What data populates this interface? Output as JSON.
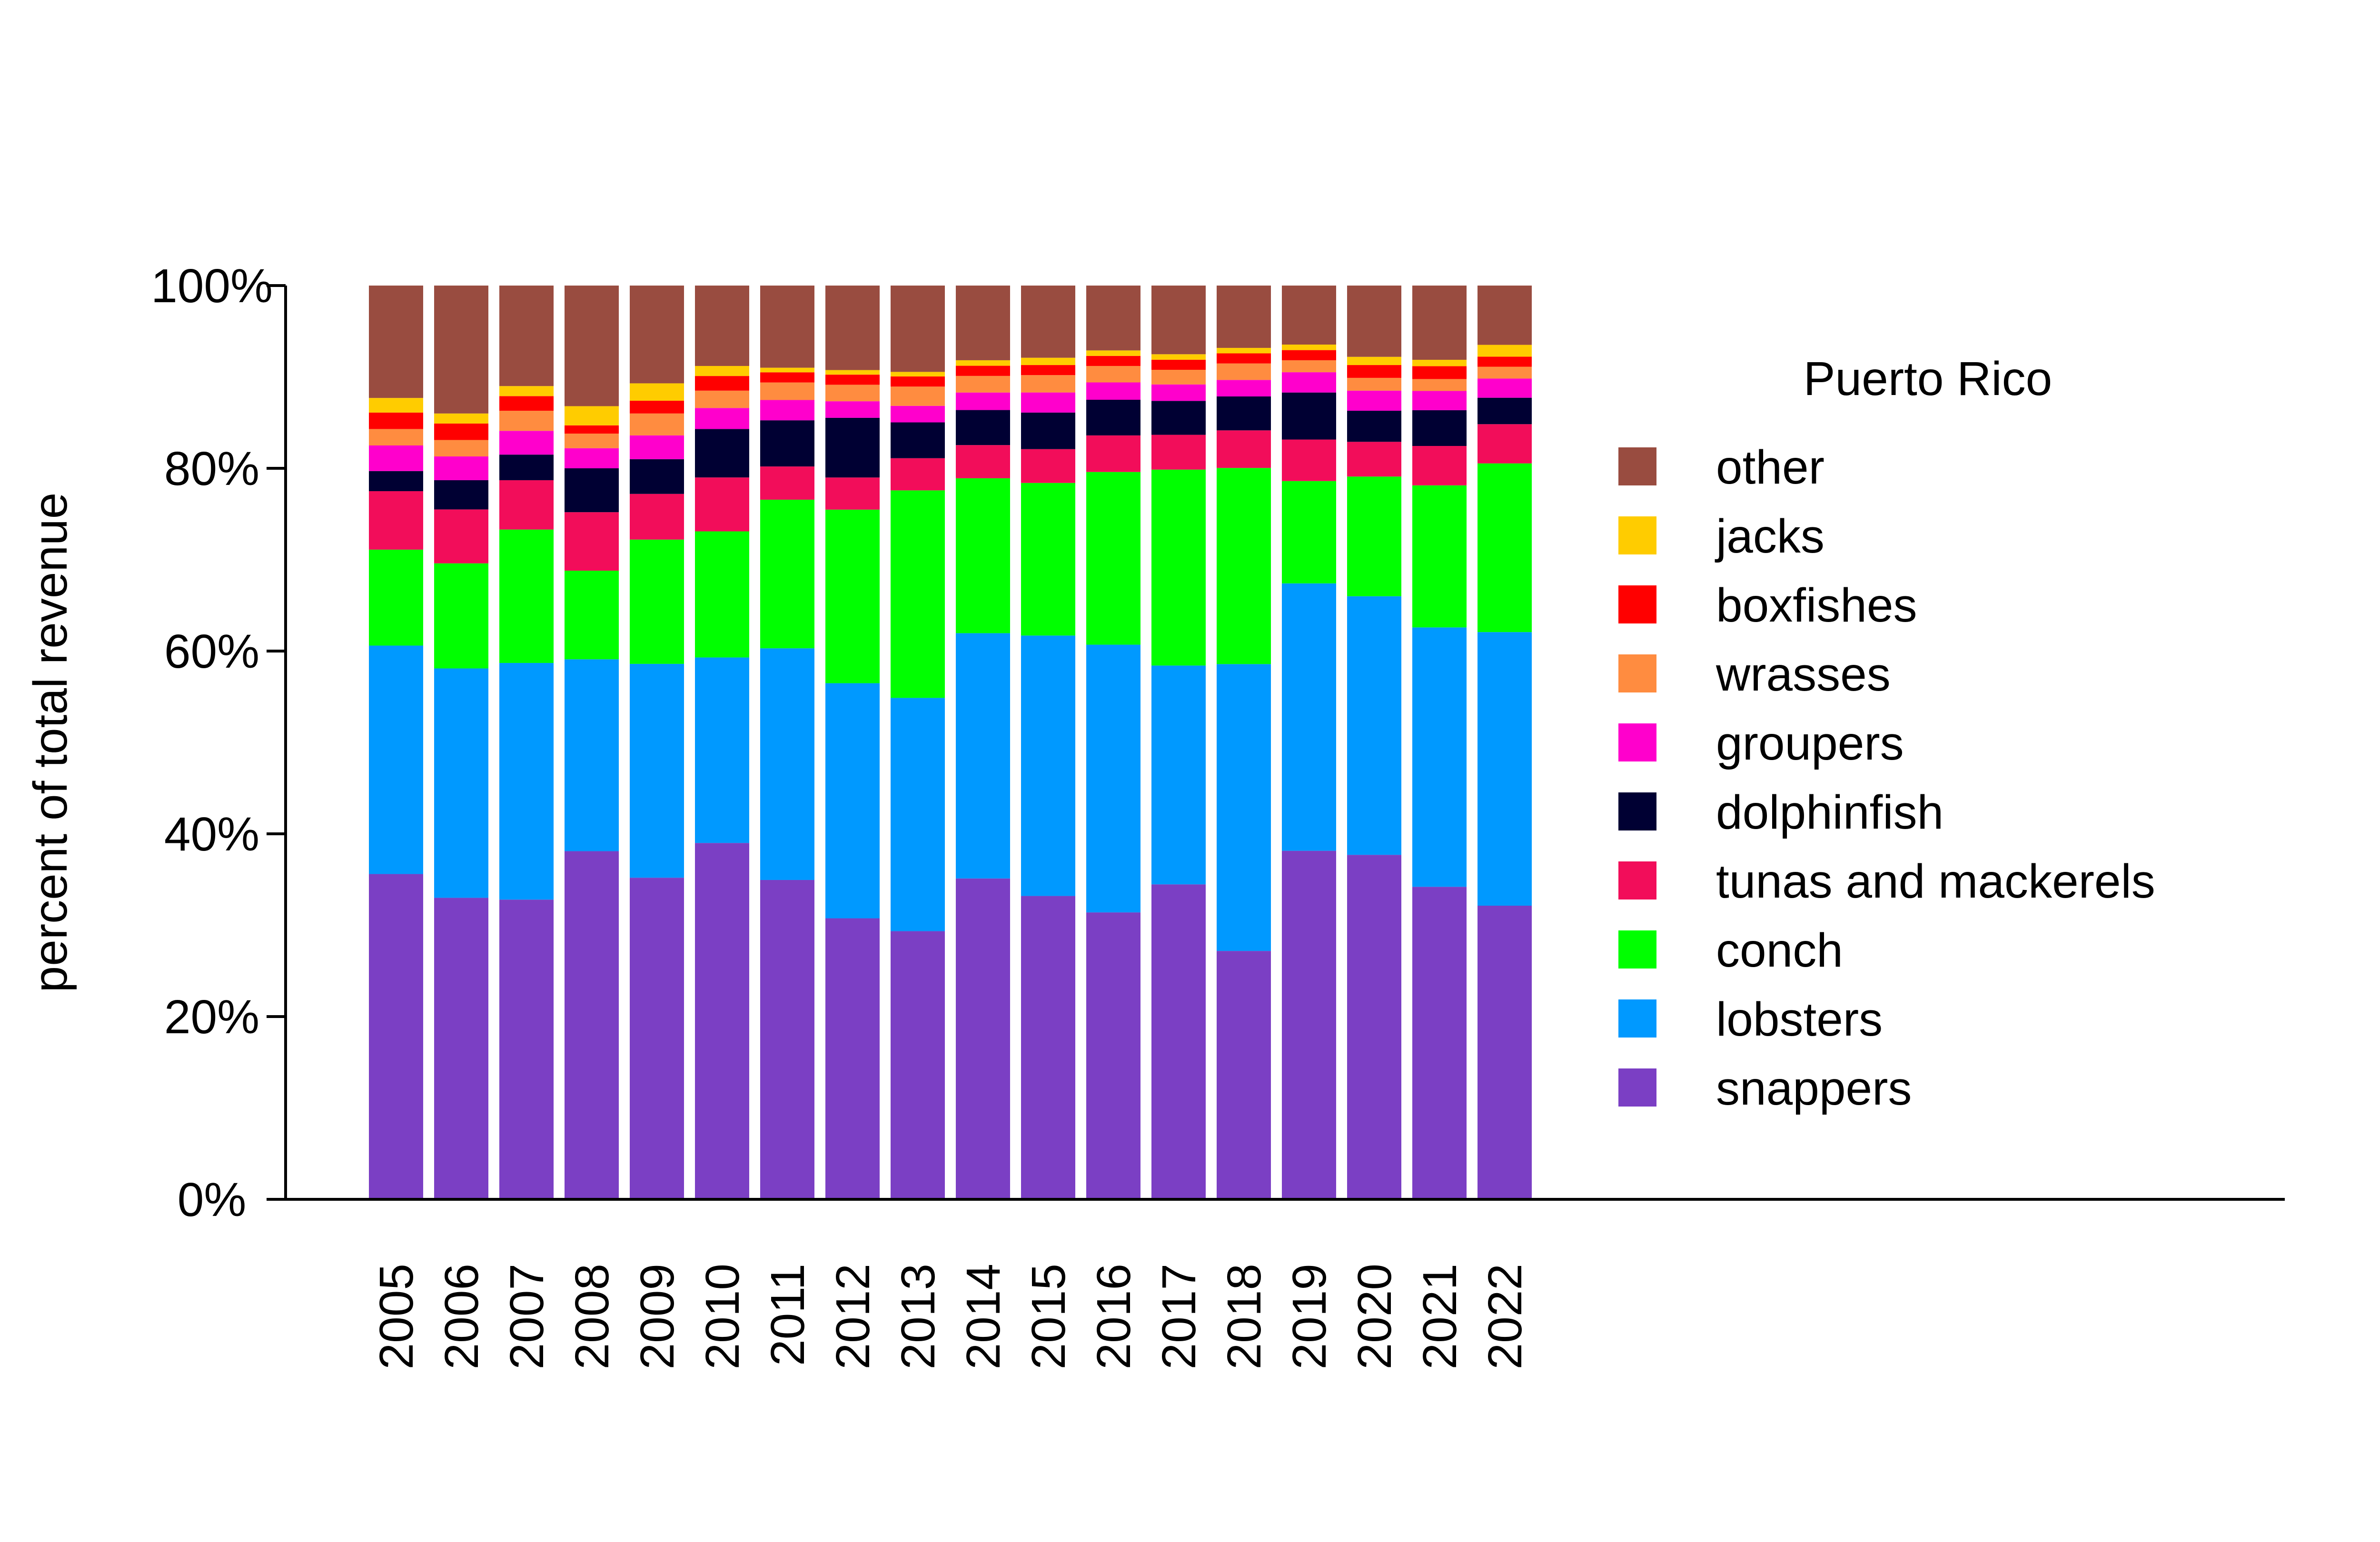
{
  "chart_data": {
    "type": "bar",
    "stacked": true,
    "normalized": true,
    "title": "",
    "xlabel": "",
    "ylabel": "percent of total revenue",
    "ylim": [
      0,
      100
    ],
    "yticks": [
      "0%",
      "20%",
      "40%",
      "60%",
      "80%",
      "100%"
    ],
    "grid": false,
    "legend_title": "Puerto Rico",
    "legend_position": "right",
    "categories": [
      "2005",
      "2006",
      "2007",
      "2008",
      "2009",
      "2010",
      "2011",
      "2012",
      "2013",
      "2014",
      "2015",
      "2016",
      "2017",
      "2018",
      "2019",
      "2020",
      "2021",
      "2022"
    ],
    "series": [
      {
        "name": "snappers",
        "color": "#7B3FC4",
        "values": [
          35.6,
          33.0,
          32.8,
          38.1,
          35.2,
          39.0,
          34.6,
          30.6,
          29.2,
          34.8,
          33.2,
          31.4,
          34.4,
          27.1,
          37.8,
          37.7,
          34.1,
          32.2
        ]
      },
      {
        "name": "lobsters",
        "color": "#0099FF",
        "values": [
          25.0,
          25.1,
          25.9,
          21.0,
          23.4,
          20.3,
          25.1,
          25.6,
          25.4,
          26.6,
          28.5,
          29.3,
          23.9,
          31.3,
          29.0,
          28.3,
          28.3,
          30.0
        ]
      },
      {
        "name": "conch",
        "color": "#00FF00",
        "values": [
          10.5,
          11.5,
          14.6,
          9.7,
          13.6,
          13.8,
          16.1,
          18.9,
          22.6,
          16.8,
          16.7,
          18.9,
          21.4,
          21.4,
          11.1,
          13.1,
          15.5,
          18.5
        ]
      },
      {
        "name": "tunas and mackerels",
        "color": "#F20D5A",
        "values": [
          6.4,
          5.9,
          5.4,
          6.4,
          5.0,
          5.9,
          3.6,
          3.5,
          3.5,
          3.6,
          3.7,
          4.0,
          3.8,
          4.1,
          4.5,
          3.8,
          4.3,
          4.3
        ]
      },
      {
        "name": "dolphinfish",
        "color": "#000033",
        "values": [
          2.2,
          3.2,
          2.8,
          4.8,
          3.8,
          5.3,
          5.0,
          6.5,
          3.9,
          3.8,
          4.0,
          3.9,
          3.7,
          3.7,
          5.1,
          3.4,
          3.9,
          2.9
        ]
      },
      {
        "name": "groupers",
        "color": "#FF00CC",
        "values": [
          2.8,
          2.6,
          2.6,
          2.2,
          2.6,
          2.3,
          2.2,
          1.8,
          1.8,
          1.9,
          2.2,
          1.9,
          1.8,
          1.8,
          2.2,
          2.2,
          2.1,
          2.1
        ]
      },
      {
        "name": "wrasses",
        "color": "#FF8C40",
        "values": [
          1.8,
          1.8,
          2.2,
          1.6,
          2.4,
          1.9,
          1.9,
          1.8,
          2.1,
          1.8,
          1.9,
          1.8,
          1.6,
          1.8,
          1.3,
          1.4,
          1.3,
          1.3
        ]
      },
      {
        "name": "boxfishes",
        "color": "#FF0000",
        "values": [
          1.8,
          1.8,
          1.6,
          0.9,
          1.4,
          1.6,
          1.1,
          1.1,
          1.1,
          1.1,
          1.1,
          1.1,
          1.1,
          1.1,
          1.1,
          1.4,
          1.4,
          1.1
        ]
      },
      {
        "name": "jacks",
        "color": "#FFCC00",
        "values": [
          1.6,
          1.1,
          1.1,
          2.1,
          1.9,
          1.1,
          0.5,
          0.5,
          0.5,
          0.6,
          0.8,
          0.6,
          0.6,
          0.6,
          0.6,
          0.9,
          0.7,
          1.3
        ]
      },
      {
        "name": "other",
        "color": "#994C40",
        "values": [
          12.3,
          14.0,
          11.0,
          13.2,
          10.7,
          8.8,
          8.9,
          9.2,
          9.4,
          8.1,
          7.9,
          7.1,
          7.5,
          6.8,
          6.4,
          7.8,
          8.1,
          6.5
        ]
      }
    ]
  }
}
